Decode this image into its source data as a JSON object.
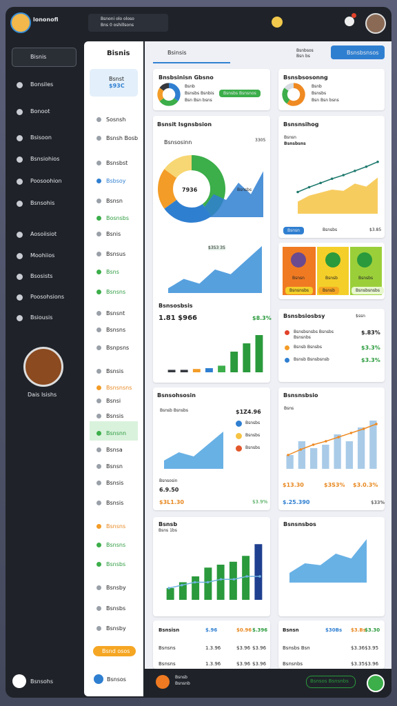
{
  "topbar": {
    "brand": "lononofi",
    "workspace": "Bsnoni olo oloso",
    "workspace_sub": "Bns 0 oshillsons"
  },
  "sidebar": {
    "search": "Bisnis",
    "items": [
      "Bonsiles",
      "Bonoot",
      "Bsisoon",
      "Bsnsiohios",
      "Poosoohion",
      "Bsnsohis",
      "Aosoiisiot",
      "Moohiios",
      "Bsosists",
      "Poosohsions",
      "Bsiousis"
    ],
    "profile": "Dais Isishs",
    "footer": "Bsnsohs"
  },
  "subnav": {
    "title": "Bisnis",
    "card_title": "Bsnst",
    "card_value": "$93C",
    "items": [
      "Sosnsh",
      "Bsnsh Bosb",
      "Bsnsbst",
      "Bsbsoy",
      "Bsnsn",
      "Bosnsbs",
      "Bsnis",
      "Bsnsus",
      "Bsns",
      "Bsnsns",
      "Bsnsnt",
      "Bsnsns",
      "Bsnpsns",
      "Bsnsis",
      "Bsnsnsns",
      "Bsnsi",
      "Bsnsis",
      "Bsnsnn",
      "Bsnsa",
      "Bsnsn",
      "Bsnsis",
      "Bsnsis",
      "Bsnsns",
      "Bsnsns",
      "Bsnsbs",
      "Bsnsby",
      "Bsnsbs",
      "Bsnsby"
    ],
    "button": "Bsnd osos",
    "footer": "Bsnsos"
  },
  "toolbar": {
    "tab": "Bsinsis",
    "filter": "Bsnbsos",
    "filter_sub": "Bsn bs",
    "button": "Bsnsbsnsos"
  },
  "cards": {
    "overview": {
      "title": "Bnsbsinisn Gbsno",
      "lines": [
        "Bsnb",
        "Bsnsbs Bsnbis",
        "Bsn Bsn bsns"
      ],
      "button": "Bsnsbs Bsnsnos",
      "chart": {
        "type": "pie",
        "values": [
          35,
          30,
          20,
          15
        ],
        "colors": [
          "#2f7fd1",
          "#3cae4a",
          "#f39c27",
          "#35393f"
        ]
      }
    },
    "growth": {
      "title": "Bsnsbsosonng",
      "lines": [
        "Bsnb",
        "Bsnsbs",
        "Bsn Bsn bsns"
      ],
      "chart": {
        "type": "pie",
        "values": [
          60,
          25,
          15
        ],
        "colors": [
          "#ef8a22",
          "#3cae4a",
          "#d8dde3"
        ]
      }
    },
    "insights": {
      "title": "Bsnsit Isgnsbsion",
      "subtitle": "Bsnsosinn",
      "value": "3305",
      "center": "7936",
      "badge": "Bsnsbs",
      "tag": "$3S3 3S",
      "donut": {
        "type": "pie",
        "values": [
          40,
          25,
          20,
          15
        ],
        "colors": [
          "#3cae4a",
          "#2f7fd1",
          "#f39c27",
          "#f7d774"
        ]
      },
      "area": {
        "type": "area",
        "values": [
          1,
          4,
          3,
          6,
          4,
          8
        ],
        "ylim": [
          0,
          9
        ],
        "color": "#2f7fd1"
      },
      "area2": {
        "type": "area",
        "values": [
          0.5,
          1.5,
          1,
          2.5,
          2,
          3.5,
          5
        ],
        "ylim": [
          0,
          5.5
        ],
        "color": "#3a8fd8"
      },
      "section": "Bsnsosbsis",
      "total": "1.81 $966",
      "change": "$8.3%",
      "bars": {
        "type": "bar",
        "values": [
          0.3,
          0.3,
          0.4,
          0.5,
          0.8,
          2.5,
          3.5,
          4.5
        ],
        "ylim": [
          0,
          5
        ],
        "colors": [
          "#35393f",
          "#35393f",
          "#f39c27",
          "#2f7fd1",
          "#3cae4a",
          "#2a9a3c",
          "#2a9a3c",
          "#2a9a3c"
        ]
      }
    },
    "trend": {
      "title": "Bsnsnsihog",
      "label": "Bsnsn",
      "sub": "Bsnsbsns",
      "area": {
        "type": "area",
        "values": [
          2,
          3,
          3.5,
          4,
          3.8,
          5,
          4.5,
          6
        ],
        "ylim": [
          0,
          8
        ],
        "color": "#f6c343"
      },
      "line": {
        "type": "line",
        "values": [
          2,
          2.8,
          3.5,
          4.2,
          4.8,
          5.5,
          6.2,
          7
        ],
        "ylim": [
          0,
          8
        ],
        "color": "#1f7a6e"
      },
      "footer": [
        "Bsnsn",
        "Bsnsbs",
        "$3.85"
      ]
    },
    "tiles": {
      "labels": [
        "Bsnsn",
        "Bsnsb",
        "Bsnsbs"
      ],
      "buttons": [
        "Bsnsnsbs",
        "Bsnsb",
        "Bsnsbsnsbs"
      ]
    },
    "summary": {
      "title": "Bsnsbsiosbsy",
      "link": "$ssn",
      "rows": [
        {
          "label": "Bsnsbsnsbs Bsnsbs",
          "sub": "Bsnsnbs",
          "value": "$.83%"
        },
        {
          "label": "Bsnsb Bsnsbs",
          "value": "$3.3%"
        },
        {
          "label": "Bsnsb Bsnsbsnsb",
          "value": "$3.3%"
        }
      ]
    },
    "revenue": {
      "title": "Bsnsohsosin",
      "label": "Bsnsb Bsnsbs",
      "value": "$1Z4.96",
      "legend": [
        {
          "name": "Bsnsbs",
          "color": "#2f7fd1"
        },
        {
          "name": "Bsnsbs",
          "color": "#f6c343"
        },
        {
          "name": "Bsnsbs",
          "color": "#e2572b"
        }
      ],
      "area": {
        "type": "area",
        "values": [
          1,
          2,
          1.5,
          3,
          4.5
        ],
        "ylim": [
          0,
          5
        ],
        "color": "#4da3e0"
      },
      "footer": [
        "Bsnsosin",
        "6.9.50",
        "$3L1.30",
        "$3.9%"
      ]
    },
    "performance": {
      "title": "Bsnsnsbsio",
      "label": "Bsns",
      "bars": {
        "type": "bar",
        "values": [
          2,
          4,
          3,
          3.5,
          5,
          4,
          6,
          7
        ],
        "ylim": [
          0,
          8
        ],
        "colors": [
          "#a9cbe8"
        ]
      },
      "line": {
        "type": "line",
        "values": [
          2,
          2.8,
          3.5,
          4,
          4.6,
          5.2,
          5.8,
          6.5
        ],
        "ylim": [
          0,
          8
        ],
        "color": "#ef8a22"
      },
      "footer": [
        "$13.30",
        "$3S3%",
        "$3.0.3%",
        "$.25.390",
        "$33%"
      ]
    },
    "weekly": {
      "title": "Bsnsb",
      "sub": "Bsns 1bs",
      "bars": {
        "type": "bar",
        "values": [
          2,
          3,
          4,
          5.5,
          6,
          6.5,
          7.5,
          9.5
        ],
        "ylim": [
          0,
          10
        ],
        "colors": [
          "#2a9a3c",
          "#2a9a3c",
          "#2a9a3c",
          "#2a9a3c",
          "#2a9a3c",
          "#2a9a3c",
          "#2a9a3c",
          "#1f3f8f"
        ]
      },
      "line": {
        "type": "line",
        "values": [
          2,
          2.5,
          3,
          3,
          3.5,
          3.5,
          4,
          4
        ],
        "ylim": [
          0,
          10
        ],
        "color": "#6fb3e0"
      }
    },
    "forecast": {
      "title": "Bsnsnsbos",
      "area": {
        "type": "area",
        "values": [
          1,
          2,
          1.8,
          3,
          2.5,
          4.5
        ],
        "ylim": [
          0,
          5
        ],
        "color": "#4da3e0"
      }
    },
    "table_left": {
      "header": [
        "Bsnsisn",
        "$.96",
        "$0.96",
        "$.396"
      ],
      "rows": [
        [
          "Bsnsns",
          "1.3.96",
          "$3.96",
          "$3.96"
        ],
        [
          "Bsnsns",
          "1.3.96",
          "$3.96",
          "$3.96"
        ]
      ]
    },
    "table_right": {
      "header": [
        "Bsnsn",
        "$30Bs",
        "$3.Bs",
        "$3.30"
      ],
      "rows": [
        [
          "Bsnsbs Bsn",
          "$3.36",
          "$3.95"
        ],
        [
          "Bsnsnbs",
          "$3.35",
          "$3.96"
        ]
      ]
    }
  },
  "bottombar": {
    "title": "Bsnsb",
    "sub": "Bsnsnb",
    "button": "Bsnsos Bsnsnbs"
  }
}
